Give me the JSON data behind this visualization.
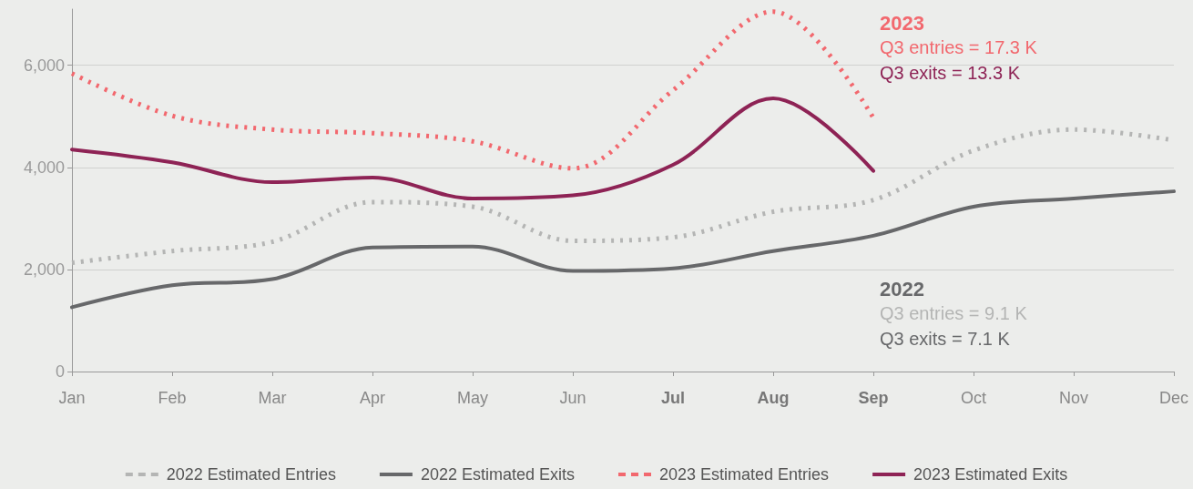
{
  "chart_data": {
    "type": "line",
    "categories": [
      "Jan",
      "Feb",
      "Mar",
      "Apr",
      "May",
      "Jun",
      "Jul",
      "Aug",
      "Sep",
      "Oct",
      "Nov",
      "Dec"
    ],
    "series": [
      {
        "name": "2022 Estimated Entries",
        "color": "#b4b5b4",
        "line_style": "dotted",
        "values": [
          2130,
          2360,
          2540,
          3320,
          3230,
          2560,
          2630,
          3130,
          3360,
          4330,
          4740,
          4530
        ]
      },
      {
        "name": "2022 Estimated Exits",
        "color": "#67686a",
        "line_style": "solid",
        "values": [
          1260,
          1690,
          1810,
          2430,
          2450,
          1970,
          2020,
          2360,
          2660,
          3230,
          3390,
          3530
        ]
      },
      {
        "name": "2023 Estimated Entries",
        "color": "#f2686e",
        "line_style": "dotted",
        "values": [
          5840,
          5010,
          4740,
          4670,
          4510,
          3980,
          5510,
          7050,
          4970,
          null,
          null,
          null
        ]
      },
      {
        "name": "2023 Estimated Exits",
        "color": "#8e2355",
        "line_style": "solid",
        "values": [
          4350,
          4100,
          3710,
          3800,
          3390,
          3450,
          4050,
          5350,
          3930,
          null,
          null,
          null
        ]
      }
    ],
    "ylim": [
      0,
      7100
    ],
    "yticks": [
      0,
      {
        "value": 2000,
        "label": "2,000"
      },
      {
        "value": 4000,
        "label": "4,000"
      },
      {
        "value": 6000,
        "label": "6,000"
      }
    ],
    "grid": "y",
    "legend": "bottom",
    "marker": "none",
    "annotations": [
      "2023",
      "Q3 entries = 17.3 K",
      "Q3 exits = 13.3 K",
      "2022",
      "Q3 entries = 9.1 K",
      "Q3 exits = 7.1 K"
    ]
  }
}
